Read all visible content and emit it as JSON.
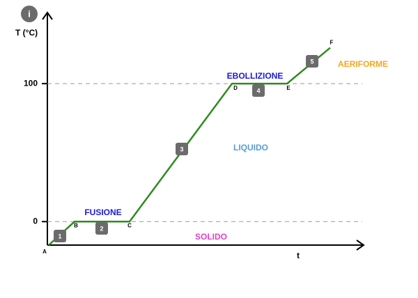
{
  "chart_data": {
    "type": "line",
    "info_icon": "i",
    "y_label": "T (°C)",
    "x_label": "t",
    "categories": [
      "A",
      "B",
      "C",
      "D",
      "E",
      "F"
    ],
    "series": [
      {
        "color": "#2e8b1e",
        "values": [
          -17,
          0,
          0,
          100,
          100,
          126
        ]
      }
    ],
    "ylim": [
      -17,
      150
    ],
    "yticks": [
      0,
      100
    ],
    "grid": true,
    "grid_style": "dashed",
    "steps": [
      "1",
      "2",
      "3",
      "4",
      "5"
    ],
    "phases": [
      {
        "text": "FUSIONE",
        "color": "#1a1adb"
      },
      {
        "text": "EBOLLIZIONE",
        "color": "#1a1adb"
      },
      {
        "text": "SOLIDO",
        "color": "#e040c8"
      },
      {
        "text": "LIQUIDO",
        "color": "#5b9bd5"
      },
      {
        "text": "AERIFORME",
        "color": "#f5a623"
      }
    ]
  }
}
